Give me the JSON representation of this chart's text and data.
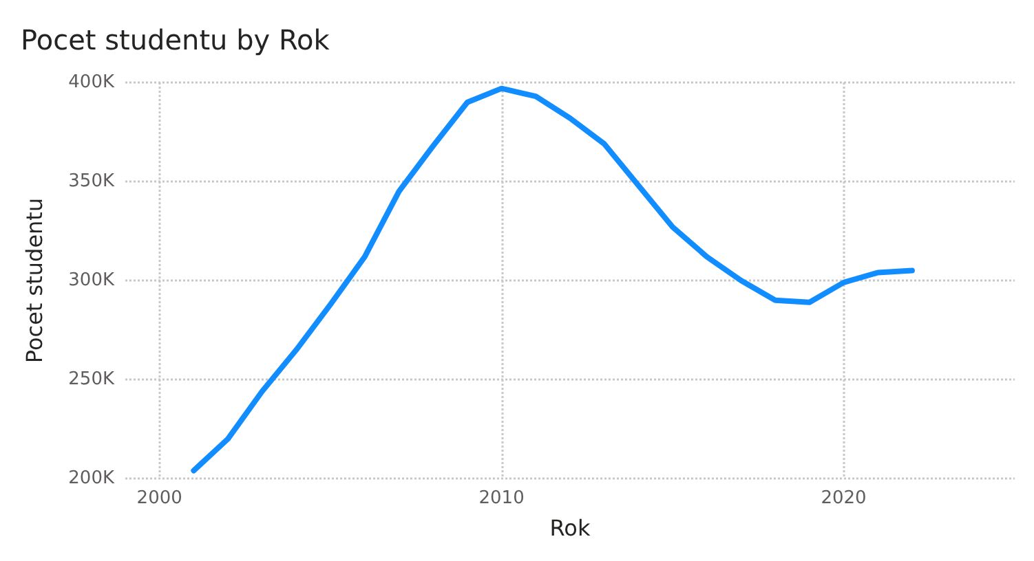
{
  "chart_data": {
    "type": "line",
    "title": "Pocet studentu by Rok",
    "xlabel": "Rok",
    "ylabel": "Pocet studentu",
    "x": [
      2001,
      2002,
      2003,
      2004,
      2005,
      2006,
      2007,
      2008,
      2009,
      2010,
      2011,
      2012,
      2013,
      2014,
      2015,
      2016,
      2017,
      2018,
      2019,
      2020,
      2021,
      2022
    ],
    "series": [
      {
        "color": "#118dff",
        "values": [
          204000,
          220000,
          244000,
          265000,
          288000,
          312000,
          345000,
          368000,
          390000,
          397000,
          393000,
          382000,
          369000,
          348000,
          327000,
          312000,
          300000,
          290000,
          289000,
          299000,
          304000,
          305000
        ]
      }
    ],
    "xlim": [
      1999,
      2025
    ],
    "xticks": [
      2000,
      2010,
      2020
    ],
    "ylim": [
      200000,
      400000
    ],
    "yticks": [
      {
        "value": 200000,
        "label": "200K"
      },
      {
        "value": 250000,
        "label": "250K"
      },
      {
        "value": 300000,
        "label": "300K"
      },
      {
        "value": 350000,
        "label": "350K"
      },
      {
        "value": 400000,
        "label": "400K"
      }
    ],
    "grid": true,
    "marker": "none",
    "line_style": "solid"
  }
}
